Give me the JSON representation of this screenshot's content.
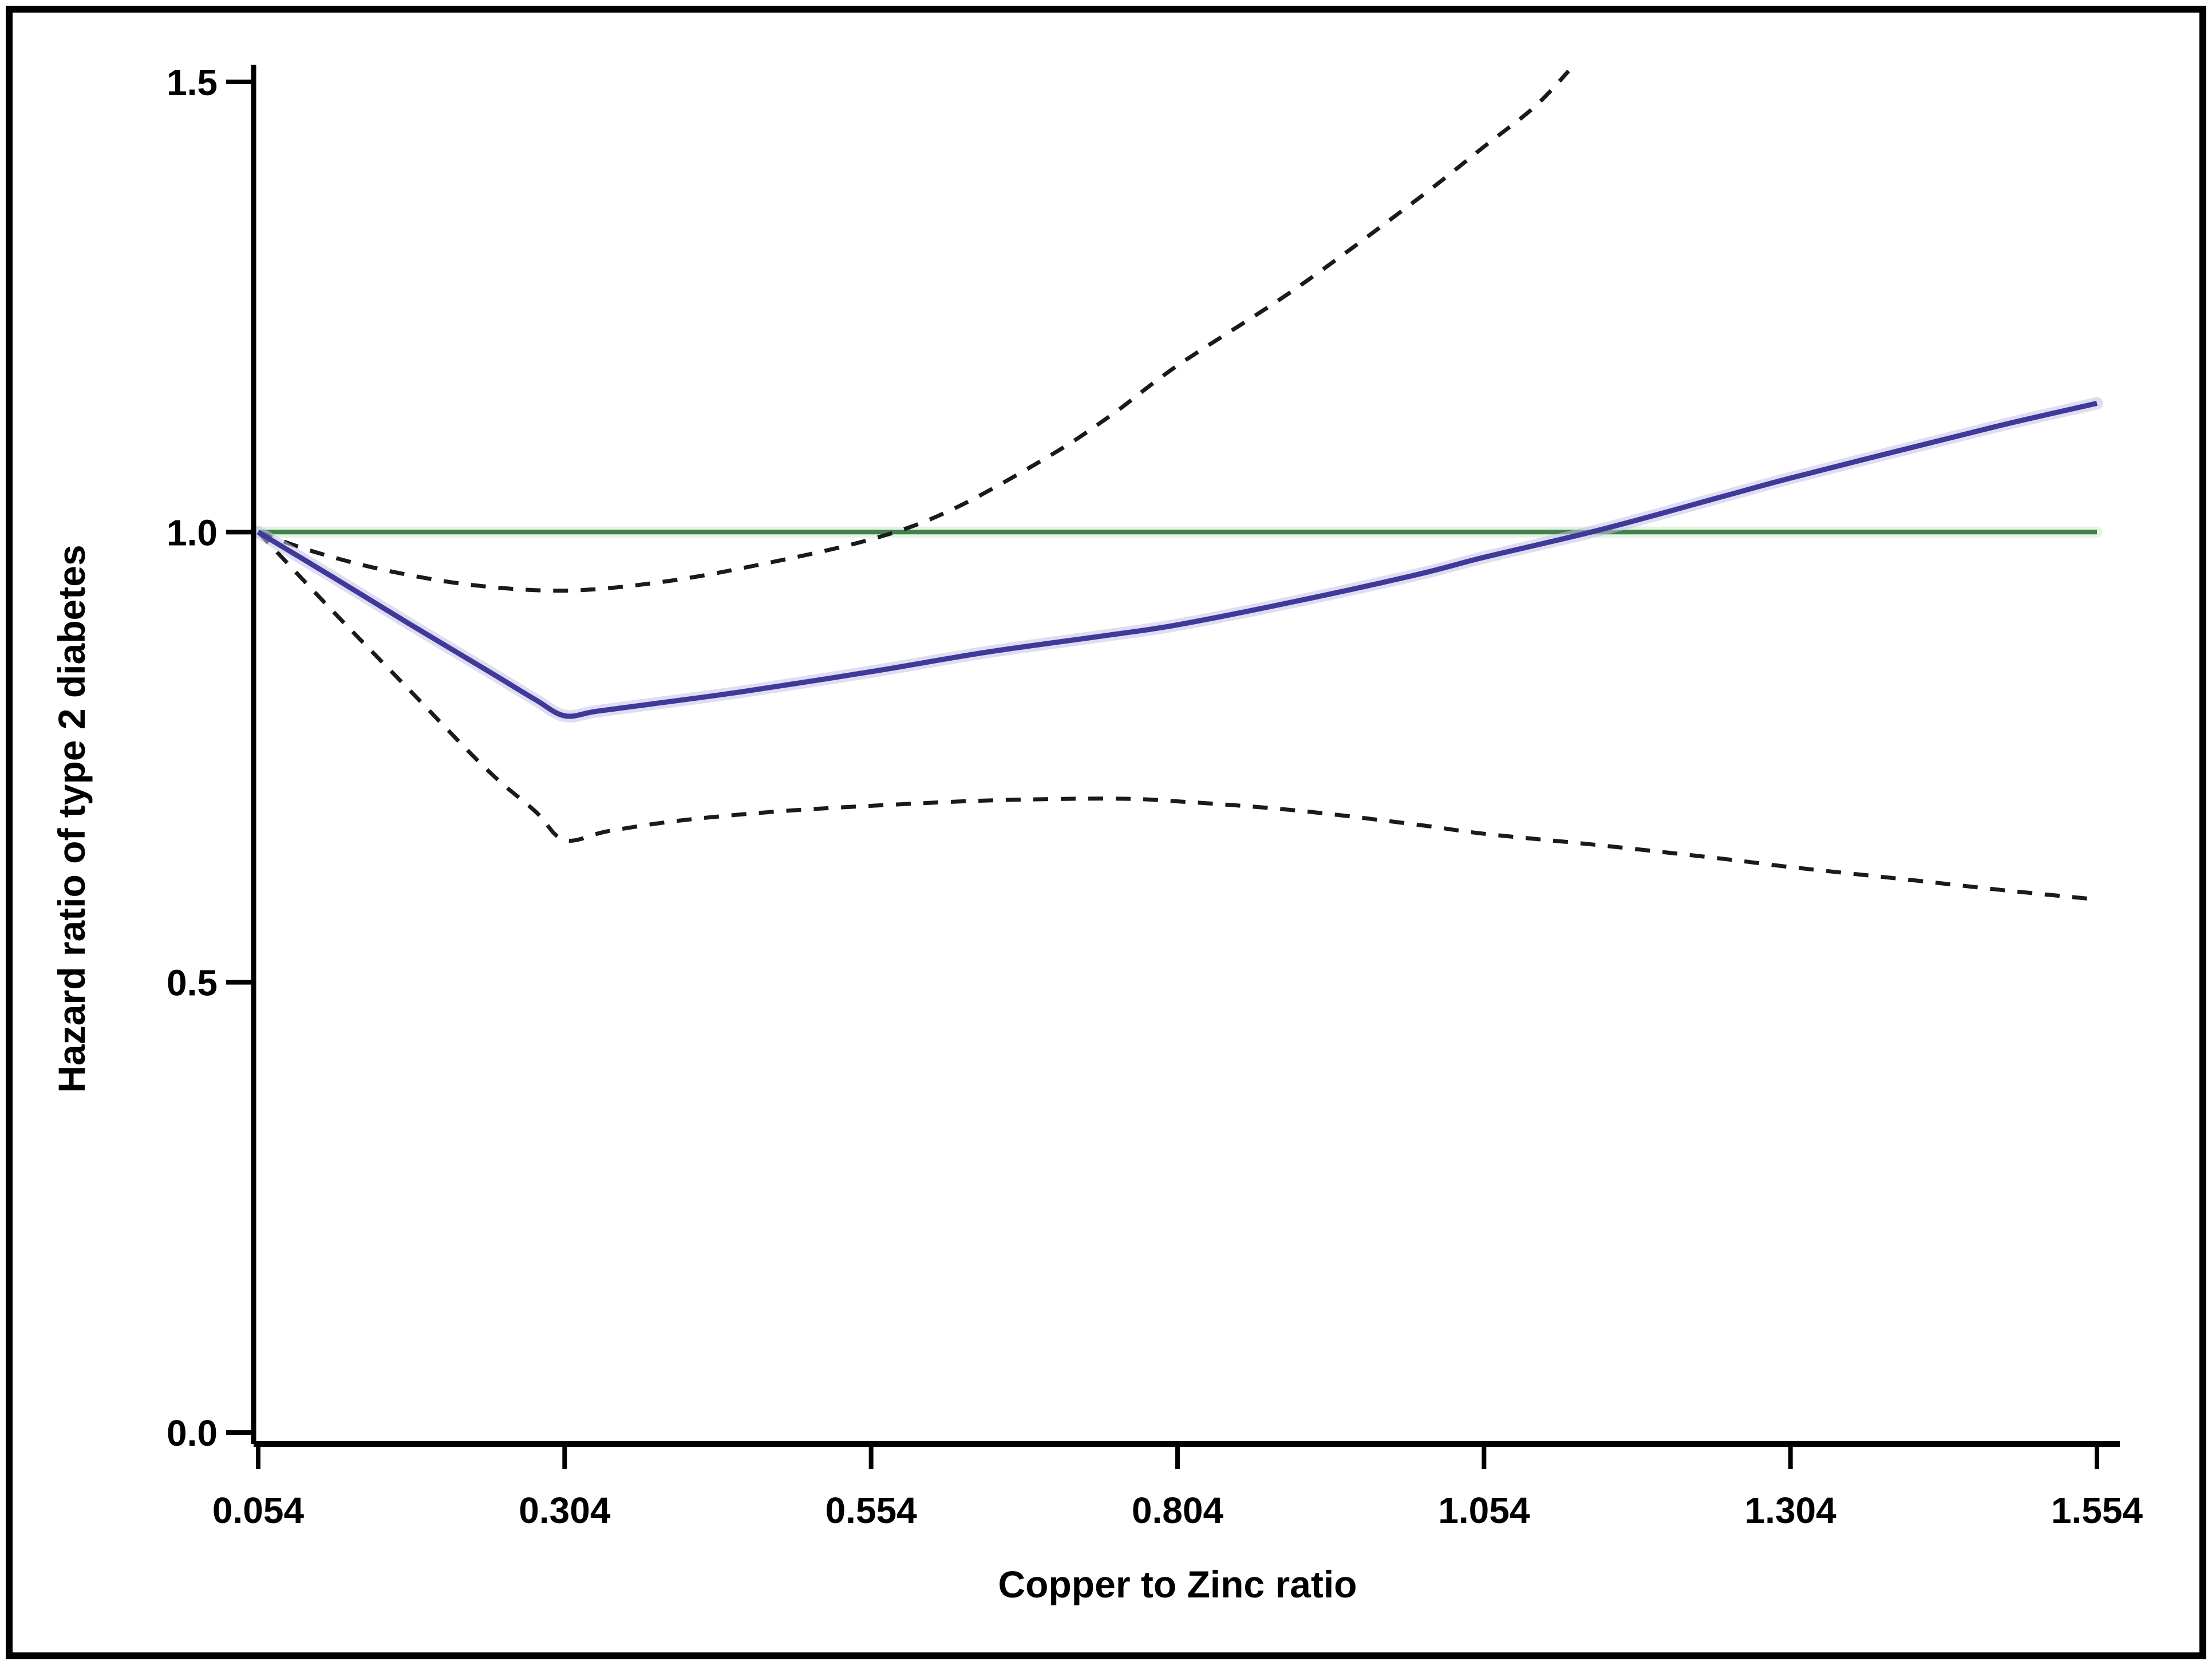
{
  "figure": {
    "background": "#ffffff",
    "border_color": "#000000"
  },
  "chart_data": {
    "type": "line",
    "title": "",
    "xlabel": "Copper to Zinc ratio",
    "ylabel": "Hazard ratio of type 2 diabetes",
    "xlim": [
      0.054,
      1.554
    ],
    "ylim": [
      0.0,
      1.515
    ],
    "grid": false,
    "legend": false,
    "x_ticks": [
      0.054,
      0.304,
      0.554,
      0.804,
      1.054,
      1.304,
      1.554
    ],
    "x_tick_labels": [
      "0.054",
      "0.304",
      "0.554",
      "0.804",
      "1.054",
      "1.304",
      "1.554"
    ],
    "y_ticks": [
      0.0,
      0.5,
      1.0,
      1.5
    ],
    "y_tick_labels": [
      "0.0",
      "0.5",
      "1.0",
      "1.5"
    ],
    "reference_line_y": 1.0,
    "colors": {
      "estimate": "#3f3a99",
      "confidence_interval": "#1a1a1a",
      "reference": "#44804c",
      "axis": "#000000"
    },
    "series": [
      {
        "name": "reference-line",
        "label": "Reference (HR = 1.0)",
        "style": "solid",
        "color": "#44804c",
        "width": 8,
        "points": [
          [
            0.054,
            1.0
          ],
          [
            1.554,
            1.0
          ]
        ]
      },
      {
        "name": "upper-95-ci",
        "label": "Upper 95% CI",
        "style": "dashed",
        "color": "#1a1a1a",
        "width": 7,
        "points": [
          [
            0.054,
            1.0
          ],
          [
            0.1,
            0.978
          ],
          [
            0.16,
            0.957
          ],
          [
            0.23,
            0.941
          ],
          [
            0.304,
            0.935
          ],
          [
            0.38,
            0.944
          ],
          [
            0.46,
            0.963
          ],
          [
            0.554,
            0.992
          ],
          [
            0.62,
            1.025
          ],
          [
            0.7,
            1.085
          ],
          [
            0.75,
            1.13
          ],
          [
            0.804,
            1.185
          ],
          [
            0.9,
            1.27
          ],
          [
            1.0,
            1.37
          ],
          [
            1.054,
            1.428
          ],
          [
            1.095,
            1.472
          ],
          [
            1.123,
            1.512
          ]
        ]
      },
      {
        "name": "lower-95-ci",
        "label": "Lower 95% CI",
        "style": "dashed",
        "color": "#1a1a1a",
        "width": 7,
        "points": [
          [
            0.054,
            1.0
          ],
          [
            0.115,
            0.912
          ],
          [
            0.175,
            0.828
          ],
          [
            0.24,
            0.737
          ],
          [
            0.28,
            0.69
          ],
          [
            0.304,
            0.658
          ],
          [
            0.34,
            0.668
          ],
          [
            0.4,
            0.68
          ],
          [
            0.48,
            0.69
          ],
          [
            0.554,
            0.696
          ],
          [
            0.65,
            0.702
          ],
          [
            0.75,
            0.704
          ],
          [
            0.804,
            0.701
          ],
          [
            0.9,
            0.691
          ],
          [
            1.0,
            0.675
          ],
          [
            1.054,
            0.665
          ],
          [
            1.15,
            0.652
          ],
          [
            1.25,
            0.637
          ],
          [
            1.304,
            0.628
          ],
          [
            1.4,
            0.614
          ],
          [
            1.48,
            0.602
          ],
          [
            1.554,
            0.592
          ]
        ]
      },
      {
        "name": "hazard-ratio-estimate",
        "label": "Hazard ratio",
        "style": "solid",
        "color": "#3f3a99",
        "width": 9,
        "points": [
          [
            0.054,
            1.0
          ],
          [
            0.115,
            0.95
          ],
          [
            0.175,
            0.9
          ],
          [
            0.24,
            0.847
          ],
          [
            0.28,
            0.814
          ],
          [
            0.304,
            0.796
          ],
          [
            0.33,
            0.801
          ],
          [
            0.38,
            0.81
          ],
          [
            0.45,
            0.823
          ],
          [
            0.554,
            0.845
          ],
          [
            0.65,
            0.867
          ],
          [
            0.75,
            0.886
          ],
          [
            0.804,
            0.897
          ],
          [
            0.9,
            0.923
          ],
          [
            1.0,
            0.953
          ],
          [
            1.054,
            0.972
          ],
          [
            1.15,
            1.003
          ],
          [
            1.25,
            1.04
          ],
          [
            1.304,
            1.06
          ],
          [
            1.4,
            1.093
          ],
          [
            1.48,
            1.12
          ],
          [
            1.554,
            1.143
          ]
        ]
      }
    ]
  }
}
